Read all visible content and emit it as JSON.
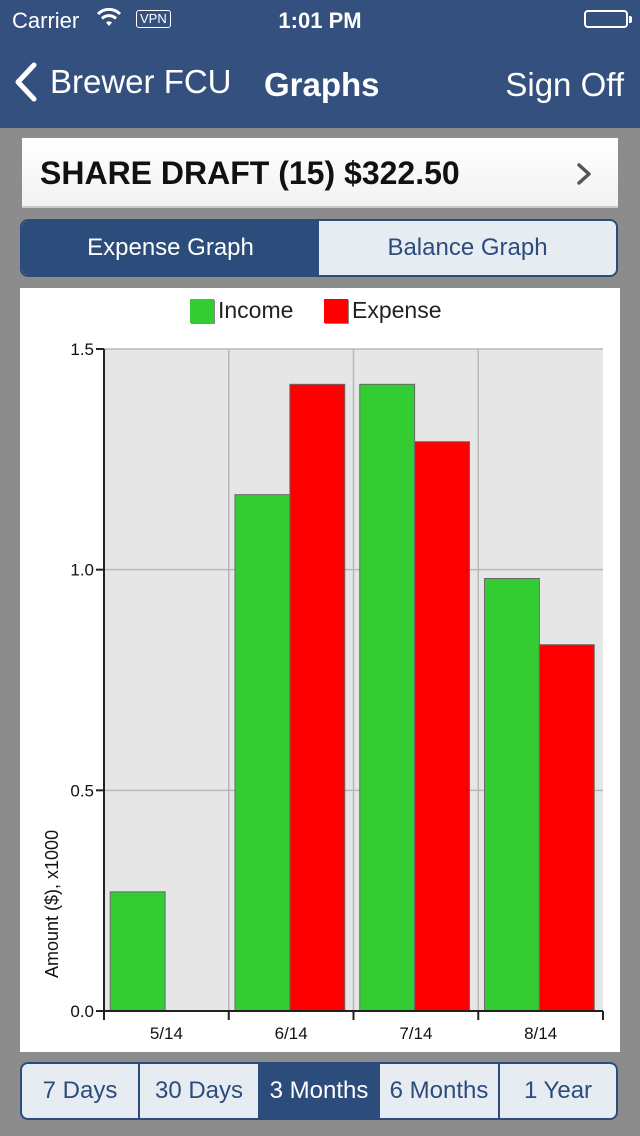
{
  "status": {
    "carrier": "Carrier",
    "vpn": "VPN",
    "time": "1:01 PM"
  },
  "nav": {
    "back_label": "Brewer FCU",
    "title": "Graphs",
    "sign_off": "Sign Off"
  },
  "account": {
    "label": "SHARE DRAFT (15) $322.50"
  },
  "graph_tabs": [
    {
      "label": "Expense Graph",
      "active": true
    },
    {
      "label": "Balance Graph",
      "active": false
    }
  ],
  "colors": {
    "accent": "#2c4c7c",
    "income": "#33cc33",
    "expense": "#ff0000",
    "plot_bg": "#e6e6e6"
  },
  "chart_data": {
    "type": "bar",
    "categories": [
      "5/14",
      "6/14",
      "7/14",
      "8/14"
    ],
    "series": [
      {
        "name": "Income",
        "values": [
          0.27,
          1.17,
          1.42,
          0.98
        ]
      },
      {
        "name": "Expense",
        "values": [
          0,
          1.42,
          1.29,
          0.83
        ]
      }
    ],
    "ylabel": "Amount ($), x1000",
    "ylim": [
      0,
      1.5
    ],
    "yticks": [
      "0.0",
      "0.5",
      "1.0",
      "1.5"
    ],
    "grid": true,
    "legend": "top"
  },
  "periods": [
    {
      "label": "7 Days",
      "active": false
    },
    {
      "label": "30 Days",
      "active": false
    },
    {
      "label": "3 Months",
      "active": true
    },
    {
      "label": "6 Months",
      "active": false
    },
    {
      "label": "1 Year",
      "active": false
    }
  ]
}
